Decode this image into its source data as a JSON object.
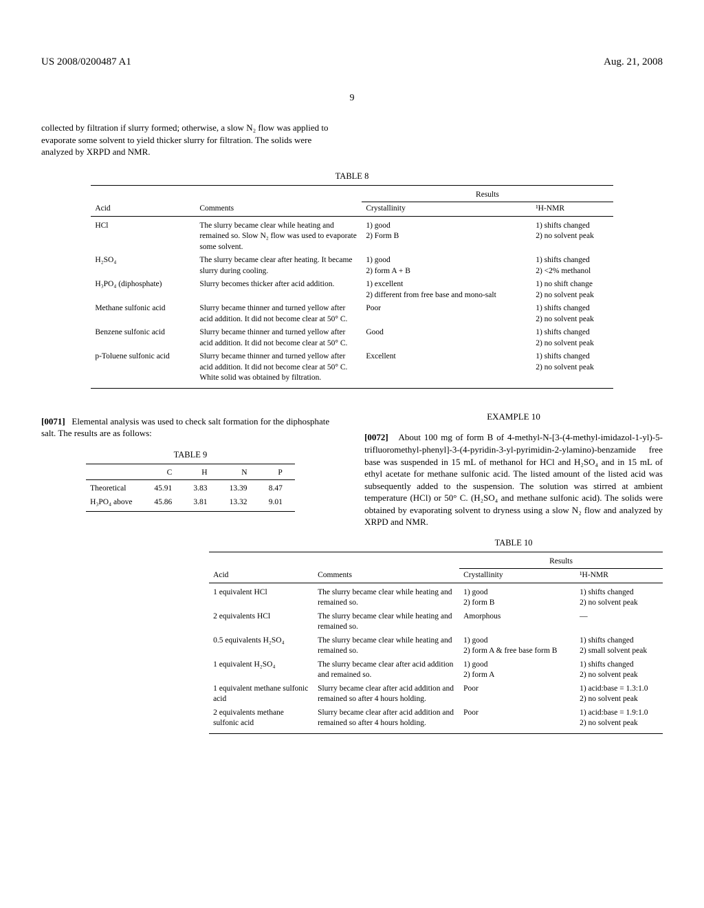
{
  "header": {
    "patent_no": "US 2008/0200487 A1",
    "date": "Aug. 21, 2008",
    "page_number": "9"
  },
  "top_para": "collected by filtration if slurry formed; otherwise, a slow N₂ flow was applied to evaporate some solvent to yield thicker slurry for filtration. The solids were analyzed by XRPD and NMR.",
  "table8": {
    "caption": "TABLE 8",
    "cols": {
      "acid": "Acid",
      "comments": "Comments",
      "results": "Results",
      "cryst": "Crystallinity",
      "nmr": "¹H-NMR"
    },
    "rows": [
      {
        "acid": "HCl",
        "comments": "The slurry became clear while heating and remained so. Slow N₂ flow was used to evaporate some solvent.",
        "cryst": "1) good\n2) Form B",
        "nmr": "1) shifts changed\n2) no solvent peak"
      },
      {
        "acid": "H₂SO₄",
        "comments": "The slurry became clear after heating. It became slurry during cooling.",
        "cryst": "1) good\n2) form A + B",
        "nmr": "1) shifts changed\n2) <2% methanol"
      },
      {
        "acid": "H₃PO₄ (diphosphate)",
        "comments": "Slurry becomes thicker after acid addition.",
        "cryst": "1) excellent\n2) different from free base and mono-salt",
        "nmr": "1) no shift change\n2) no solvent peak"
      },
      {
        "acid": "Methane sulfonic acid",
        "comments": "Slurry became thinner and turned yellow after acid addition. It did not become clear at 50° C.",
        "cryst": "Poor",
        "nmr": "1) shifts changed\n2) no solvent peak"
      },
      {
        "acid": "Benzene sulfonic acid",
        "comments": "Slurry became thinner and turned yellow after acid addition. It did not become clear at 50° C.",
        "cryst": "Good",
        "nmr": "1) shifts changed\n2) no solvent peak"
      },
      {
        "acid": "p-Toluene sulfonic acid",
        "comments": "Slurry became thinner and turned yellow after acid addition. It did not become clear at 50° C. White solid was obtained by filtration.",
        "cryst": "Excellent",
        "nmr": "1) shifts changed\n2) no solvent peak"
      }
    ]
  },
  "para_0071_id": "[0071]",
  "para_0071": "Elemental analysis was used to check salt formation for the diphosphate salt. The results are as follows:",
  "table9": {
    "caption": "TABLE 9",
    "headers": [
      "",
      "C",
      "H",
      "N",
      "P"
    ],
    "rows": [
      [
        "Theoretical",
        "45.91",
        "3.83",
        "13.39",
        "8.47"
      ],
      [
        "H₃PO₄ above",
        "45.86",
        "3.81",
        "13.32",
        "9.01"
      ]
    ]
  },
  "example10_title": "EXAMPLE 10",
  "para_0072_id": "[0072]",
  "para_0072": "About 100 mg of form B of 4-methyl-N-[3-(4-methyl-imidazol-1-yl)-5-trifluoromethyl-phenyl]-3-(4-pyridin-3-yl-pyrimidin-2-ylamino)-benzamide free base was suspended in 15 mL of methanol for HCl and H₂SO₄ and in 15 mL of ethyl acetate for methane sulfonic acid. The listed amount of the listed acid was subsequently added to the suspension. The solution was stirred at ambient temperature (HCl) or 50° C. (H₂SO₄ and methane sulfonic acid). The solids were obtained by evaporating solvent to dryness using a slow N₂ flow and analyzed by XRPD and NMR.",
  "table10": {
    "caption": "TABLE 10",
    "cols": {
      "acid": "Acid",
      "comments": "Comments",
      "results": "Results",
      "cryst": "Crystallinity",
      "nmr": "¹H-NMR"
    },
    "rows": [
      {
        "acid": "1 equivalent HCl",
        "comments": "The slurry became clear while heating and remained so.",
        "cryst": "1) good\n2) form B",
        "nmr": "1) shifts changed\n2) no solvent peak"
      },
      {
        "acid": "2 equivalents HCl",
        "comments": "The slurry became clear while heating and remained so.",
        "cryst": "Amorphous",
        "nmr": "—"
      },
      {
        "acid": "0.5 equivalents H₂SO₄",
        "comments": "The slurry became clear while heating and remained so.",
        "cryst": "1) good\n2) form A & free base form B",
        "nmr": "1) shifts changed\n2) small solvent peak"
      },
      {
        "acid": "1 equivalent H₂SO₄",
        "comments": "The slurry became clear after acid addition and remained so.",
        "cryst": "1) good\n2) form A",
        "nmr": "1) shifts changed\n2) no solvent peak"
      },
      {
        "acid": "1 equivalent methane sulfonic acid",
        "comments": "Slurry became clear after acid addition and remained so after 4 hours holding.",
        "cryst": "Poor",
        "nmr": "1) acid:base = 1.3:1.0\n2) no solvent peak"
      },
      {
        "acid": "2 equivalents methane sulfonic acid",
        "comments": "Slurry became clear after acid addition and remained so after 4 hours holding.",
        "cryst": "Poor",
        "nmr": "1) acid:base = 1.9:1.0\n2) no solvent peak"
      }
    ]
  }
}
